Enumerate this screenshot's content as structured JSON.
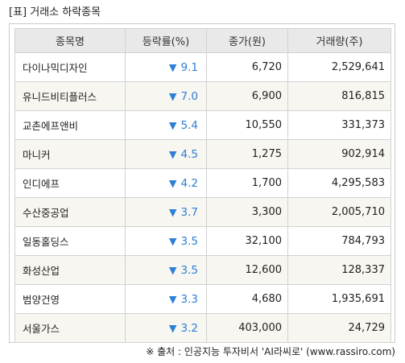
{
  "title": "[표] 거래소 하락종목",
  "down_arrow": "▼",
  "table": {
    "headers": {
      "name": "종목명",
      "change": "등락률(%)",
      "price": "종가(원)",
      "volume": "거래량(주)"
    },
    "rows": [
      {
        "name": "다이나믹디자인",
        "change": "9.1",
        "price": "6,720",
        "volume": "2,529,641"
      },
      {
        "name": "유니드비티플러스",
        "change": "7.0",
        "price": "6,900",
        "volume": "816,815"
      },
      {
        "name": "교촌에프앤비",
        "change": "5.4",
        "price": "10,550",
        "volume": "331,373"
      },
      {
        "name": "마니커",
        "change": "4.5",
        "price": "1,275",
        "volume": "902,914"
      },
      {
        "name": "인디에프",
        "change": "4.2",
        "price": "1,700",
        "volume": "4,295,583"
      },
      {
        "name": "수산중공업",
        "change": "3.7",
        "price": "3,300",
        "volume": "2,005,710"
      },
      {
        "name": "일동홀딩스",
        "change": "3.5",
        "price": "32,100",
        "volume": "784,793"
      },
      {
        "name": "화성산업",
        "change": "3.5",
        "price": "12,600",
        "volume": "128,337"
      },
      {
        "name": "범양건영",
        "change": "3.3",
        "price": "4,680",
        "volume": "1,935,691"
      },
      {
        "name": "서울가스",
        "change": "3.2",
        "price": "403,000",
        "volume": "24,729"
      }
    ]
  },
  "source": "※ 출처 : 인공지능 투자비서 'AI라씨로' (www.rassiro.com)",
  "colors": {
    "down": "#2e7fd6",
    "header_bg": "#e9e9e9",
    "alt_row_bg": "#f7f6f1",
    "border": "#d2d2d2"
  }
}
